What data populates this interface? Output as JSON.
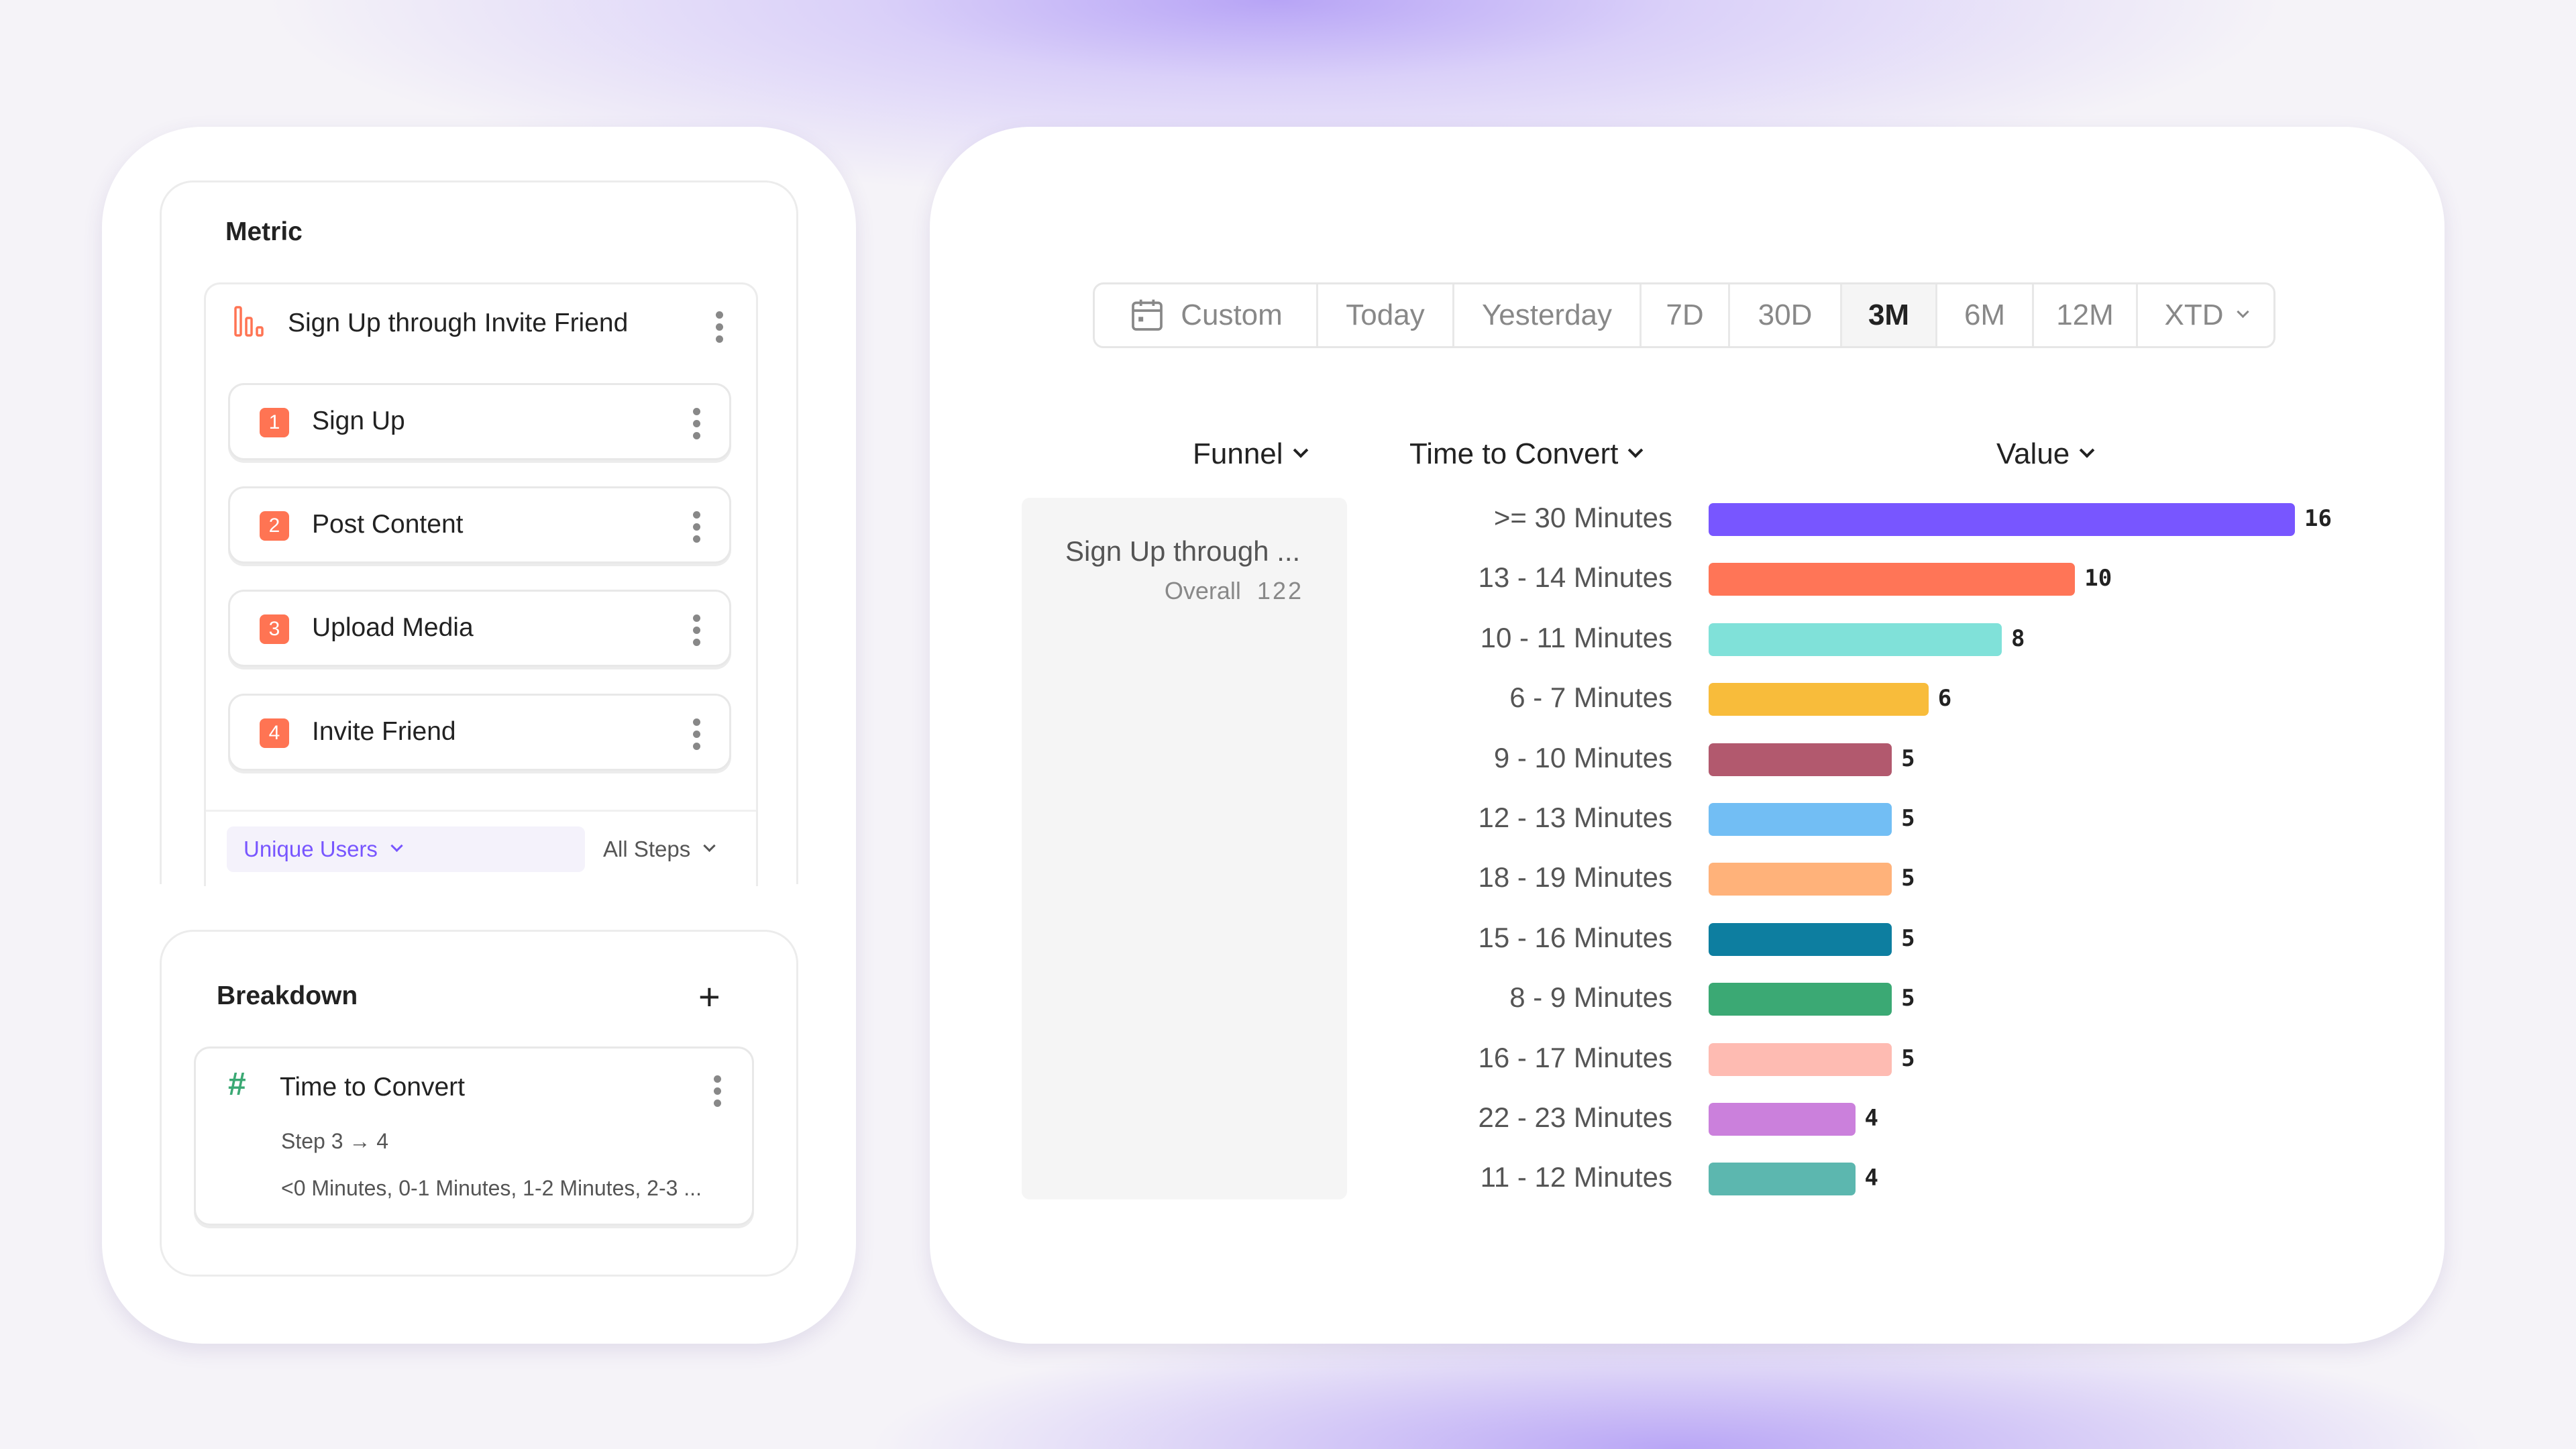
{
  "metric": {
    "heading": "Metric",
    "funnel_name": "Sign Up through Invite Friend",
    "steps": [
      {
        "num": "1",
        "label": "Sign Up"
      },
      {
        "num": "2",
        "label": "Post Content"
      },
      {
        "num": "3",
        "label": "Upload Media"
      },
      {
        "num": "4",
        "label": "Invite Friend"
      }
    ],
    "measure": "Unique Users",
    "steps_filter": "All Steps"
  },
  "breakdown": {
    "heading": "Breakdown",
    "property": "Time to Convert",
    "step_range": "Step 3 → 4",
    "buckets": "<0 Minutes, 0-1 Minutes, 1-2 Minutes, 2-3 ..."
  },
  "date_tabs": {
    "items": [
      "Custom",
      "Today",
      "Yesterday",
      "7D",
      "30D",
      "3M",
      "6M",
      "12M",
      "XTD"
    ],
    "active": "3M"
  },
  "table": {
    "col_funnel": "Funnel",
    "col_time": "Time to Convert",
    "col_value": "Value",
    "funnel_cell": "Sign Up through ...",
    "overall_label": "Overall",
    "overall_value": "122"
  },
  "chart_data": {
    "type": "bar",
    "orientation": "horizontal",
    "categories": [
      ">= 30 Minutes",
      "13 - 14 Minutes",
      "10 - 11 Minutes",
      "6 - 7 Minutes",
      "9 - 10 Minutes",
      "12 - 13 Minutes",
      "18 - 19 Minutes",
      "15 - 16 Minutes",
      "8 - 9 Minutes",
      "16 - 17 Minutes",
      "22 - 23 Minutes",
      "11 - 12 Minutes"
    ],
    "values": [
      16,
      10,
      8,
      6,
      5,
      5,
      5,
      5,
      5,
      5,
      4,
      4
    ],
    "colors": [
      "#7856ff",
      "#ff7557",
      "#80e1d9",
      "#f8bc3b",
      "#b2596e",
      "#72bef4",
      "#ffb27a",
      "#0d7ea0",
      "#3ba974",
      "#febbb2",
      "#cb80dc",
      "#5cb7af"
    ],
    "xlim": [
      0,
      16
    ]
  },
  "accent": "#7856ff"
}
